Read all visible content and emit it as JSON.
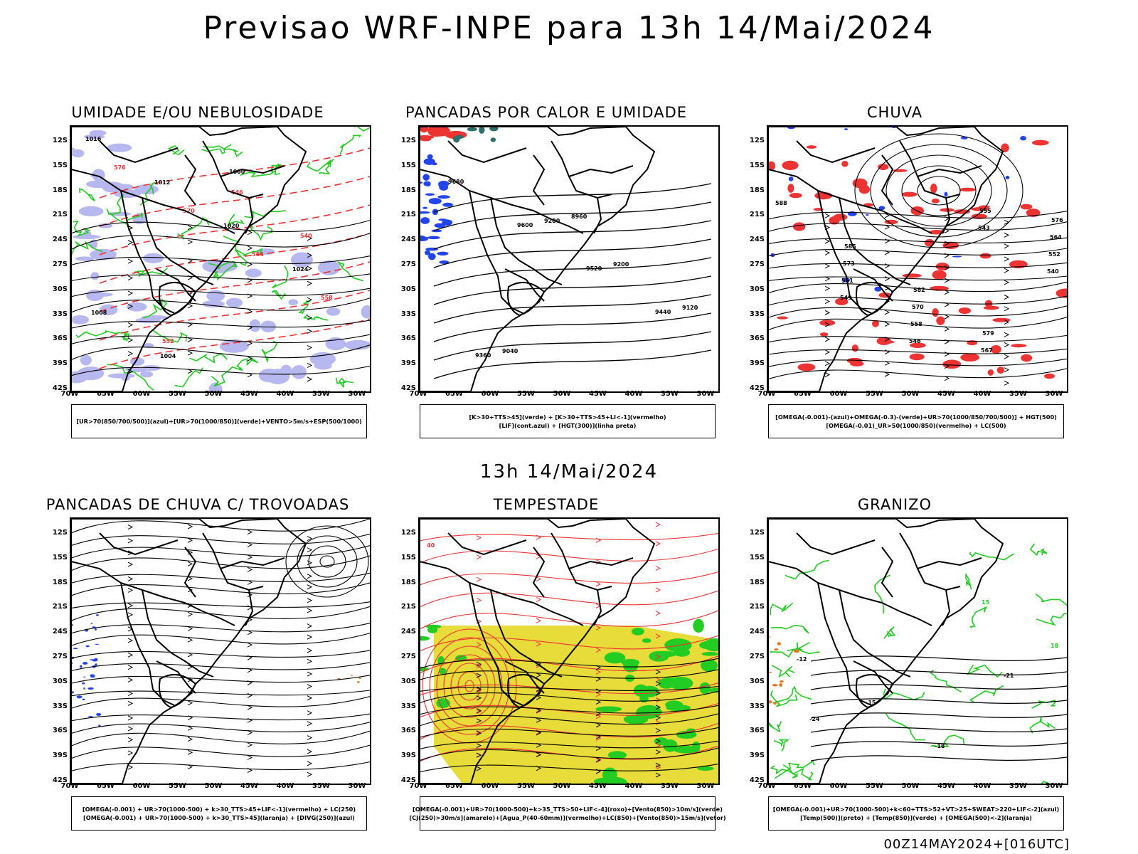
{
  "title": "Previsao WRF-INPE  para 13h 14/Mai/2024",
  "mid_time": "13h 14/Mai/2024",
  "footer": "00Z14MAY2024+[016UTC]",
  "lat_labels": [
    "12S",
    "15S",
    "18S",
    "21S",
    "24S",
    "27S",
    "30S",
    "33S",
    "36S",
    "39S",
    "42S"
  ],
  "lon_labels": [
    "70W",
    "65W",
    "60W",
    "55W",
    "50W",
    "45W",
    "40W",
    "35W",
    "30W"
  ],
  "panels": [
    {
      "title": "UMIDADE E/OU NEBULOSIDADE",
      "legend": [
        "[UR>70(850/700/500)](azul)+[UR>70(1000/850)](verde)+VENTO>5m/s+ESP(500/1000)"
      ],
      "labels": [
        "1016",
        "1012",
        "1020",
        "1024",
        "1008",
        "1004",
        "1000",
        "576",
        "570",
        "564",
        "558",
        "552",
        "546",
        "540"
      ]
    },
    {
      "title": "PANCADAS POR CALOR E UMIDADE",
      "legend": [
        "[K>30+TTS>45](verde) + [K>30+TTS>45+LI<-1](vermelho)",
        "[LIF](cont.azul) + [HGT(300)](linha preta)"
      ],
      "labels": [
        "9680",
        "9600",
        "9520",
        "9440",
        "9360",
        "9280",
        "9200",
        "9120",
        "9040",
        "8960"
      ]
    },
    {
      "title": "CHUVA",
      "legend": [
        "[OMEGA(-0.001)-(azul)+OMEGA(-0.3)-(verde)+UR>70(1000/850/700/500)] + HGT(500)",
        "[OMEGA(-0.01)_UR>50(1000/850)(vermelho) + LC(500)"
      ],
      "labels": [
        "588",
        "585",
        "582",
        "579",
        "576",
        "573",
        "570",
        "567",
        "564",
        "561",
        "558",
        "555",
        "552",
        "549",
        "546",
        "543",
        "540"
      ]
    },
    {
      "title": "PANCADAS DE CHUVA C/ TROVOADAS",
      "legend": [
        "[OMEGA(-0.001) + UR>70(1000-500) + k>30_TTS>45+LIF<-1](vermelho) + LC(250)",
        "[OMEGA(-0.001) + UR>70(1000-500) + k>30_TTS>45](laranja) + [DIVG(250)](azul)"
      ],
      "labels": []
    },
    {
      "title": "TEMPESTADE",
      "legend": [
        "[OMEGA(-0.001)+UR>70(1000-500)+k>35_TTS>50+LIF<-4](roxo)+[Vento(850)>10m/s](verde)",
        "[CJ(250)>30m/s](amarelo)+[Agua_P(40-60mm)](vermelho)+LC(850)+[Vento(850)>15m/s](vetor)"
      ],
      "labels": [
        "40"
      ]
    },
    {
      "title": "GRANIZO",
      "legend": [
        "[OMEGA(-0.001)+UR>70(1000-500)+k<60+TTS>52+VT>25+SWEAT>220+LIF<-2](azul)",
        "[Temp(500)](preto) + [Temp(850)](verde) + [OMEGA(500)<-2](laranja)"
      ],
      "labels": [
        "-12",
        "-15",
        "-18",
        "-21",
        "-24",
        "15",
        "18"
      ]
    }
  ],
  "colors": {
    "blue_shade": "#b8b8f0",
    "green": "#22cc22",
    "red": "#ee3333",
    "yellow": "#e8dc3a",
    "orange": "#e07a20",
    "blue": "#2244ee",
    "teal": "#2f6f6a"
  }
}
